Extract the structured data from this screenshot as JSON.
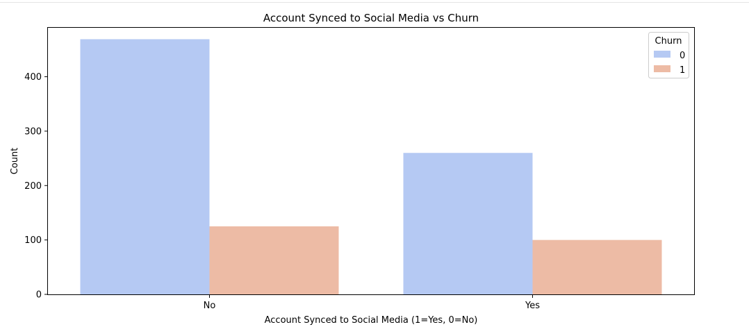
{
  "chart_data": {
    "type": "bar",
    "title": "Account Synced to Social Media vs Churn",
    "xlabel": "Account Synced to Social Media (1=Yes, 0=No)",
    "ylabel": "Count",
    "categories": [
      "No",
      "Yes"
    ],
    "series": [
      {
        "name": "0",
        "values": [
          469,
          260
        ],
        "color": "#b5c9f3"
      },
      {
        "name": "1",
        "values": [
          125,
          100
        ],
        "color": "#edbba5"
      }
    ],
    "ylim": [
      0,
      490
    ],
    "yticks": [
      0,
      100,
      200,
      300,
      400
    ],
    "legend": {
      "title": "Churn",
      "placement": "top-right"
    },
    "grid": false
  }
}
